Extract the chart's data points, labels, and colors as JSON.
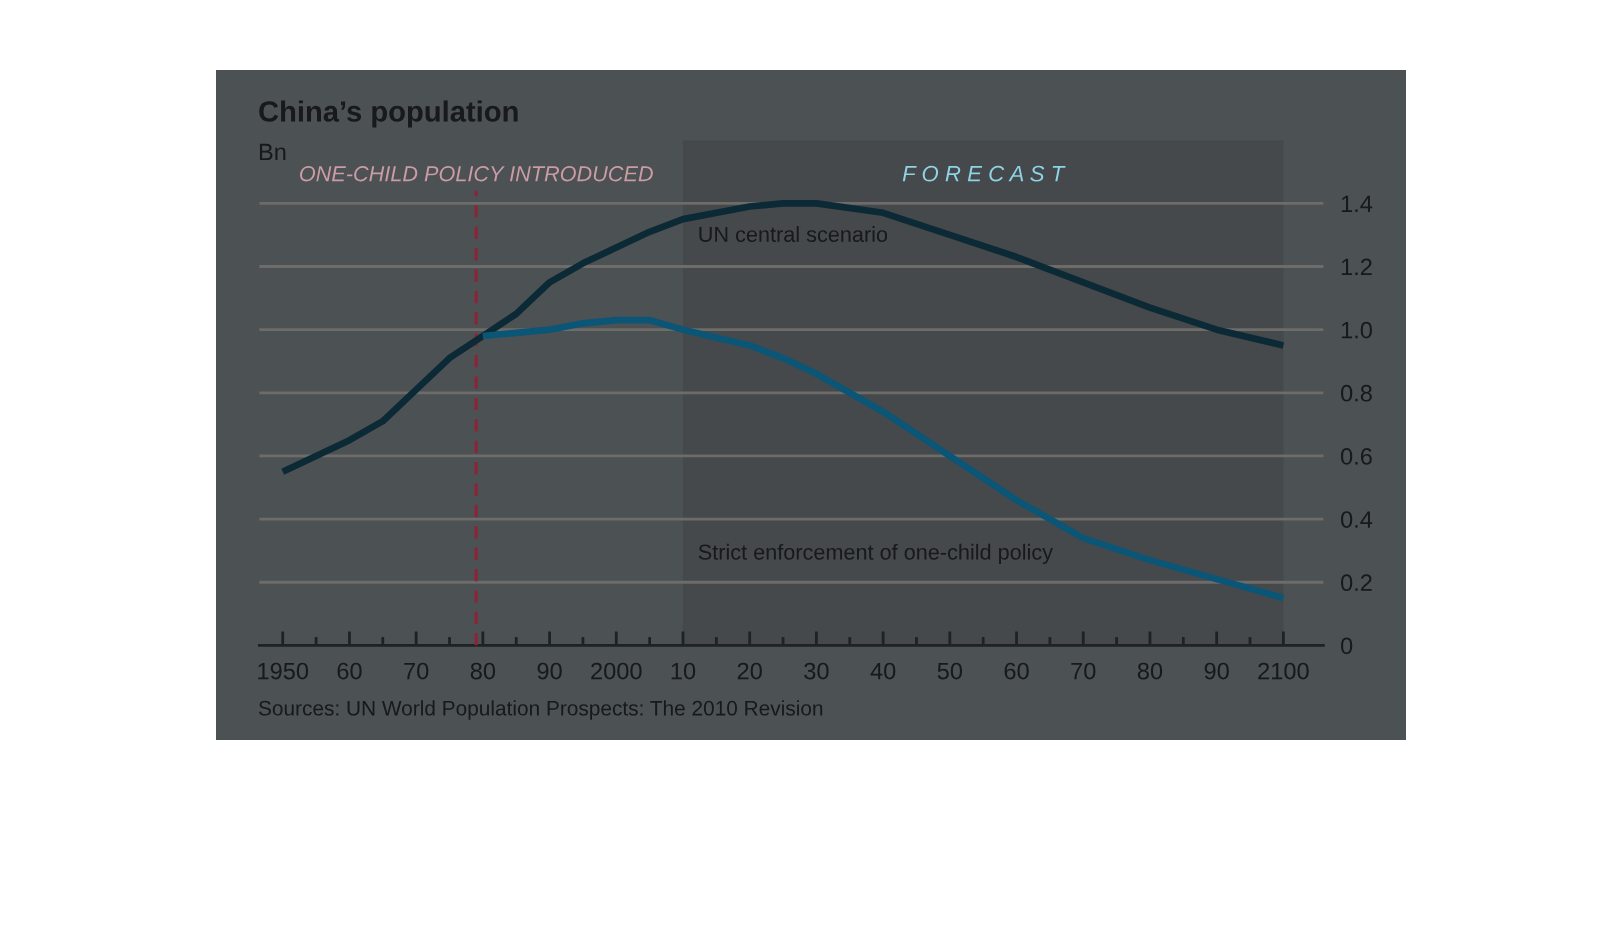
{
  "chart_data": {
    "type": "line",
    "title": "China’s population",
    "subtitle": "Bn",
    "annotations": [
      "Sources: UN World Population Prospects: The 2010 Revision"
    ],
    "series": [
      {
        "name": "UN central scenario",
        "color": "#0c2a36",
        "x": [
          1950,
          1955,
          1960,
          1965,
          1970,
          1975,
          1980,
          1985,
          1990,
          1995,
          2000,
          2005,
          2010,
          2020,
          2025,
          2030,
          2040,
          2050,
          2060,
          2070,
          2080,
          2090,
          2100
        ],
        "values": [
          0.55,
          0.6,
          0.65,
          0.71,
          0.81,
          0.91,
          0.98,
          1.05,
          1.15,
          1.21,
          1.26,
          1.31,
          1.35,
          1.39,
          1.4,
          1.4,
          1.37,
          1.3,
          1.23,
          1.15,
          1.07,
          1.0,
          0.95
        ]
      },
      {
        "name": "Strict enforcement of one-child policy",
        "color": "#0b5677",
        "x": [
          1980,
          1985,
          1990,
          1995,
          2000,
          2005,
          2010,
          2020,
          2025,
          2030,
          2040,
          2050,
          2060,
          2065,
          2070,
          2080,
          2090,
          2100
        ],
        "values": [
          0.98,
          0.99,
          1.0,
          1.02,
          1.03,
          1.03,
          1.0,
          0.95,
          0.91,
          0.86,
          0.74,
          0.6,
          0.46,
          0.4,
          0.34,
          0.27,
          0.21,
          0.15
        ]
      }
    ],
    "xlim": [
      1946.5,
      2106
    ],
    "xticks": [
      1950,
      {
        "value": 1955,
        "label": null
      },
      {
        "value": 1960,
        "label": "60"
      },
      {
        "value": 1965,
        "label": null
      },
      {
        "value": 1970,
        "label": "70"
      },
      {
        "value": 1975,
        "label": null
      },
      {
        "value": 1980,
        "label": "80"
      },
      {
        "value": 1985,
        "label": null
      },
      {
        "value": 1990,
        "label": "90"
      },
      {
        "value": 1995,
        "label": null
      },
      2000,
      {
        "value": 2005,
        "label": null
      },
      {
        "value": 2010,
        "label": "10"
      },
      {
        "value": 2015,
        "label": null
      },
      {
        "value": 2020,
        "label": "20"
      },
      {
        "value": 2025,
        "label": null
      },
      {
        "value": 2030,
        "label": "30"
      },
      {
        "value": 2035,
        "label": null
      },
      {
        "value": 2040,
        "label": "40"
      },
      {
        "value": 2045,
        "label": null
      },
      {
        "value": 2050,
        "label": "50"
      },
      {
        "value": 2055,
        "label": null
      },
      {
        "value": 2060,
        "label": "60"
      },
      {
        "value": 2065,
        "label": null
      },
      {
        "value": 2070,
        "label": "70"
      },
      {
        "value": 2075,
        "label": null
      },
      {
        "value": 2080,
        "label": "80"
      },
      {
        "value": 2085,
        "label": null
      },
      {
        "value": 2090,
        "label": "90"
      },
      {
        "value": 2095,
        "label": null
      },
      2100
    ],
    "ylim": [
      0,
      1.6
    ],
    "yticks": [
      0,
      0.2,
      0.4,
      0.6,
      0.8,
      {
        "value": 1,
        "label": "1.0"
      },
      1.2,
      1.4
    ],
    "grid": "y",
    "ref_lines": [
      {
        "axis": "x",
        "value": 1979,
        "label": "ONE-CHILD POLICY INTRODUCED",
        "color": "#8e2236",
        "line_style": "dashed"
      }
    ],
    "bands": [
      {
        "axis": "x",
        "from": 2010,
        "to": 2100,
        "label": "F O R E C A S T",
        "color": "#45494c"
      }
    ]
  }
}
